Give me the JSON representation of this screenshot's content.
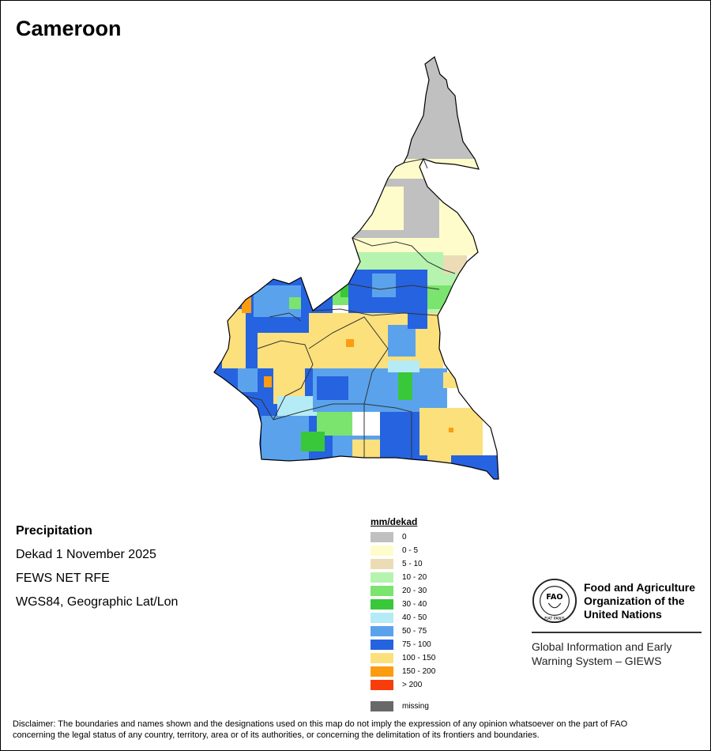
{
  "title": "Cameroon",
  "info": {
    "heading": "Precipitation",
    "period": "Dekad 1 November 2025",
    "source": "FEWS NET RFE",
    "projection": "WGS84, Geographic Lat/Lon"
  },
  "legend": {
    "title": "mm/dekad",
    "items": [
      {
        "label": "0",
        "color": "#c0c0c0"
      },
      {
        "label": "0 - 5",
        "color": "#fffccc"
      },
      {
        "label": "5 - 10",
        "color": "#ecdcb6"
      },
      {
        "label": "10 - 20",
        "color": "#b6f3ae"
      },
      {
        "label": "20 - 30",
        "color": "#7ae46e"
      },
      {
        "label": "30 - 40",
        "color": "#38c83a"
      },
      {
        "label": "40 - 50",
        "color": "#b4ebf6"
      },
      {
        "label": "50 - 75",
        "color": "#5aa3ec"
      },
      {
        "label": "75 - 100",
        "color": "#2663e0"
      },
      {
        "label": "100 - 150",
        "color": "#fce07c"
      },
      {
        "label": "150 - 200",
        "color": "#fc9c10"
      },
      {
        "label": "> 200",
        "color": "#f83c0c"
      }
    ],
    "missing": {
      "label": "missing",
      "color": "#686868"
    }
  },
  "logo": {
    "org_line1": "Food and Agriculture",
    "org_line2": "Organization of the",
    "org_line3": "United Nations",
    "emblem_text": "FAO",
    "emblem_ring": "FIAT PANIS",
    "giews_line1": "Global Information and Early",
    "giews_line2": "Warning System – GIEWS"
  },
  "disclaimer_line1": "Disclaimer: The boundaries and names shown and the designations used on this map do not imply the expression of any opinion whatsoever on the part of FAO",
  "disclaimer_line2": "concerning the legal status of any country, territory, area or of its authorities, or concerning the delimitation of its frontiers and boundaries."
}
